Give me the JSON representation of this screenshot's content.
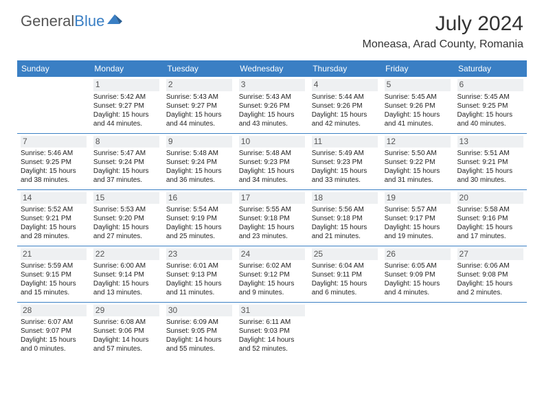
{
  "logo": {
    "text1": "General",
    "text2": "Blue",
    "shape_color": "#3a7fc4"
  },
  "title": "July 2024",
  "location": "Moneasa, Arad County, Romania",
  "colors": {
    "header_bg": "#3a7fc4",
    "header_text": "#ffffff",
    "daynum_bg": "#eef0f2",
    "divider": "#3a7fc4",
    "body_text": "#222222"
  },
  "weekdays": [
    "Sunday",
    "Monday",
    "Tuesday",
    "Wednesday",
    "Thursday",
    "Friday",
    "Saturday"
  ],
  "start_offset": 1,
  "days": [
    {
      "n": 1,
      "sunrise": "5:42 AM",
      "sunset": "9:27 PM",
      "daylight": "15 hours and 44 minutes."
    },
    {
      "n": 2,
      "sunrise": "5:43 AM",
      "sunset": "9:27 PM",
      "daylight": "15 hours and 44 minutes."
    },
    {
      "n": 3,
      "sunrise": "5:43 AM",
      "sunset": "9:26 PM",
      "daylight": "15 hours and 43 minutes."
    },
    {
      "n": 4,
      "sunrise": "5:44 AM",
      "sunset": "9:26 PM",
      "daylight": "15 hours and 42 minutes."
    },
    {
      "n": 5,
      "sunrise": "5:45 AM",
      "sunset": "9:26 PM",
      "daylight": "15 hours and 41 minutes."
    },
    {
      "n": 6,
      "sunrise": "5:45 AM",
      "sunset": "9:25 PM",
      "daylight": "15 hours and 40 minutes."
    },
    {
      "n": 7,
      "sunrise": "5:46 AM",
      "sunset": "9:25 PM",
      "daylight": "15 hours and 38 minutes."
    },
    {
      "n": 8,
      "sunrise": "5:47 AM",
      "sunset": "9:24 PM",
      "daylight": "15 hours and 37 minutes."
    },
    {
      "n": 9,
      "sunrise": "5:48 AM",
      "sunset": "9:24 PM",
      "daylight": "15 hours and 36 minutes."
    },
    {
      "n": 10,
      "sunrise": "5:48 AM",
      "sunset": "9:23 PM",
      "daylight": "15 hours and 34 minutes."
    },
    {
      "n": 11,
      "sunrise": "5:49 AM",
      "sunset": "9:23 PM",
      "daylight": "15 hours and 33 minutes."
    },
    {
      "n": 12,
      "sunrise": "5:50 AM",
      "sunset": "9:22 PM",
      "daylight": "15 hours and 31 minutes."
    },
    {
      "n": 13,
      "sunrise": "5:51 AM",
      "sunset": "9:21 PM",
      "daylight": "15 hours and 30 minutes."
    },
    {
      "n": 14,
      "sunrise": "5:52 AM",
      "sunset": "9:21 PM",
      "daylight": "15 hours and 28 minutes."
    },
    {
      "n": 15,
      "sunrise": "5:53 AM",
      "sunset": "9:20 PM",
      "daylight": "15 hours and 27 minutes."
    },
    {
      "n": 16,
      "sunrise": "5:54 AM",
      "sunset": "9:19 PM",
      "daylight": "15 hours and 25 minutes."
    },
    {
      "n": 17,
      "sunrise": "5:55 AM",
      "sunset": "9:18 PM",
      "daylight": "15 hours and 23 minutes."
    },
    {
      "n": 18,
      "sunrise": "5:56 AM",
      "sunset": "9:18 PM",
      "daylight": "15 hours and 21 minutes."
    },
    {
      "n": 19,
      "sunrise": "5:57 AM",
      "sunset": "9:17 PM",
      "daylight": "15 hours and 19 minutes."
    },
    {
      "n": 20,
      "sunrise": "5:58 AM",
      "sunset": "9:16 PM",
      "daylight": "15 hours and 17 minutes."
    },
    {
      "n": 21,
      "sunrise": "5:59 AM",
      "sunset": "9:15 PM",
      "daylight": "15 hours and 15 minutes."
    },
    {
      "n": 22,
      "sunrise": "6:00 AM",
      "sunset": "9:14 PM",
      "daylight": "15 hours and 13 minutes."
    },
    {
      "n": 23,
      "sunrise": "6:01 AM",
      "sunset": "9:13 PM",
      "daylight": "15 hours and 11 minutes."
    },
    {
      "n": 24,
      "sunrise": "6:02 AM",
      "sunset": "9:12 PM",
      "daylight": "15 hours and 9 minutes."
    },
    {
      "n": 25,
      "sunrise": "6:04 AM",
      "sunset": "9:11 PM",
      "daylight": "15 hours and 6 minutes."
    },
    {
      "n": 26,
      "sunrise": "6:05 AM",
      "sunset": "9:09 PM",
      "daylight": "15 hours and 4 minutes."
    },
    {
      "n": 27,
      "sunrise": "6:06 AM",
      "sunset": "9:08 PM",
      "daylight": "15 hours and 2 minutes."
    },
    {
      "n": 28,
      "sunrise": "6:07 AM",
      "sunset": "9:07 PM",
      "daylight": "15 hours and 0 minutes."
    },
    {
      "n": 29,
      "sunrise": "6:08 AM",
      "sunset": "9:06 PM",
      "daylight": "14 hours and 57 minutes."
    },
    {
      "n": 30,
      "sunrise": "6:09 AM",
      "sunset": "9:05 PM",
      "daylight": "14 hours and 55 minutes."
    },
    {
      "n": 31,
      "sunrise": "6:11 AM",
      "sunset": "9:03 PM",
      "daylight": "14 hours and 52 minutes."
    }
  ],
  "labels": {
    "sunrise": "Sunrise:",
    "sunset": "Sunset:",
    "daylight": "Daylight:"
  }
}
